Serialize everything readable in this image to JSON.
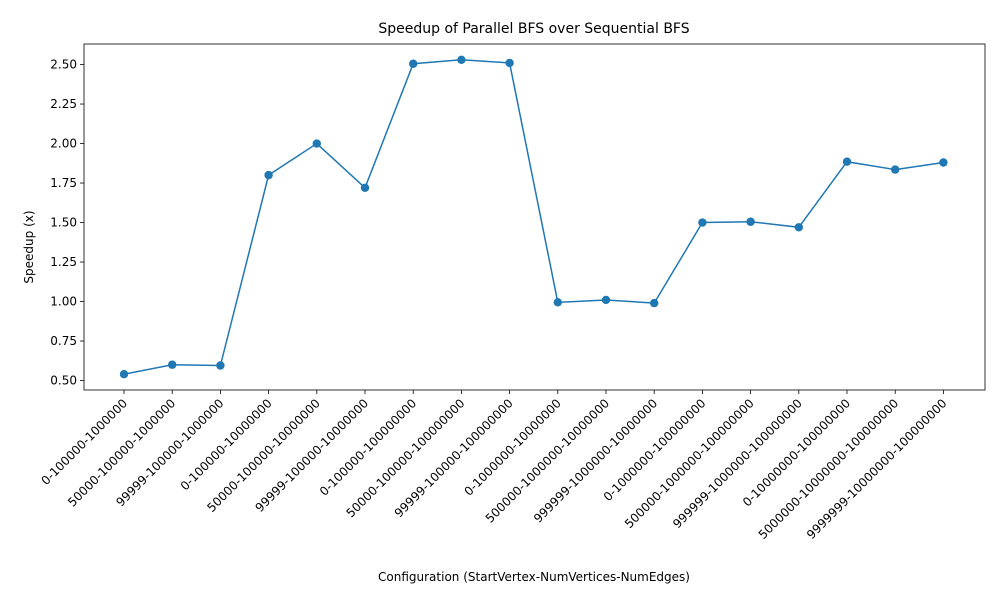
{
  "chart_data": {
    "type": "line",
    "title": "Speedup of Parallel BFS over Sequential BFS",
    "xlabel": "Configuration (StartVertex-NumVertices-NumEdges)",
    "ylabel": "Speedup (x)",
    "categories": [
      "0-100000-1000000",
      "50000-100000-1000000",
      "99999-100000-1000000",
      "0-100000-10000000",
      "50000-100000-10000000",
      "99999-100000-10000000",
      "0-100000-100000000",
      "50000-100000-100000000",
      "99999-100000-100000000",
      "0-1000000-10000000",
      "500000-1000000-10000000",
      "999999-1000000-10000000",
      "0-1000000-100000000",
      "500000-1000000-100000000",
      "999999-1000000-100000000",
      "0-10000000-100000000",
      "5000000-10000000-100000000",
      "9999999-10000000-100000000"
    ],
    "values": [
      0.54,
      0.6,
      0.595,
      1.8,
      2.0,
      1.72,
      2.505,
      2.53,
      2.51,
      0.995,
      1.01,
      0.99,
      1.5,
      1.505,
      1.47,
      1.885,
      1.835,
      1.88
    ],
    "yticks": [
      0.5,
      0.75,
      1.0,
      1.25,
      1.5,
      1.75,
      2.0,
      2.25,
      2.5
    ],
    "ylim": [
      0.44,
      2.63
    ],
    "grid": false,
    "legend": "none",
    "line_color": "#1f77b4"
  }
}
